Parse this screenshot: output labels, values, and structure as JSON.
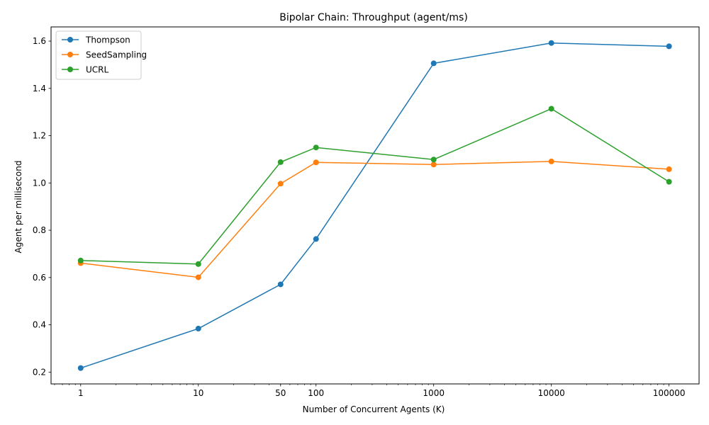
{
  "chart_data": {
    "type": "line",
    "title": "Bipolar Chain: Throughput (agent/ms)",
    "xlabel": "Number of Concurrent Agents (K)",
    "ylabel": "Agent per millisecond",
    "x_scale": "log",
    "xlim": [
      0.56,
      180000
    ],
    "ylim": [
      0.15,
      1.66
    ],
    "x": [
      1,
      10,
      50,
      100,
      1000,
      10000,
      100000
    ],
    "x_tick_labels": [
      "1",
      "10",
      "50",
      "100",
      "1000",
      "10000",
      "100000"
    ],
    "y_ticks": [
      0.2,
      0.4,
      0.6,
      0.8,
      1.0,
      1.2,
      1.4,
      1.6
    ],
    "y_tick_labels": [
      "0.2",
      "0.4",
      "0.6",
      "0.8",
      "1.0",
      "1.2",
      "1.4",
      "1.6"
    ],
    "grid": false,
    "legend_position": "top-left",
    "series": [
      {
        "name": "Thompson",
        "color": "#1f77b4",
        "marker": "circle",
        "values": [
          0.217,
          0.384,
          0.571,
          0.763,
          1.506,
          1.592,
          1.578
        ]
      },
      {
        "name": "SeedSampling",
        "color": "#ff7f0e",
        "marker": "circle",
        "values": [
          0.661,
          0.601,
          0.997,
          1.087,
          1.078,
          1.091,
          1.058
        ]
      },
      {
        "name": "UCRL",
        "color": "#2ca02c",
        "marker": "circle",
        "values": [
          0.672,
          0.657,
          1.088,
          1.15,
          1.099,
          1.314,
          1.005
        ]
      }
    ]
  }
}
